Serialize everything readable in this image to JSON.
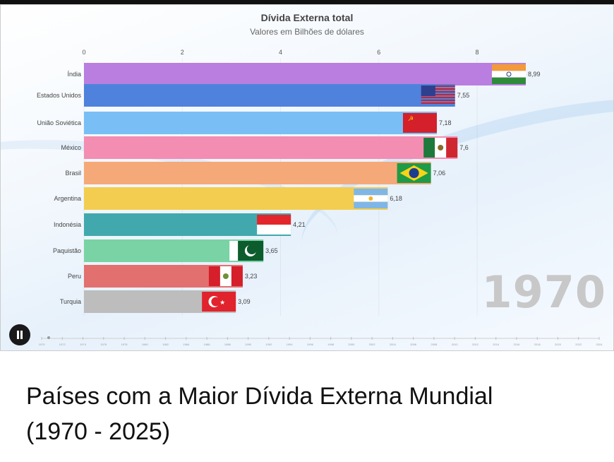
{
  "video": {
    "year": "1970",
    "pause_icon": "pause-icon"
  },
  "caption": {
    "line1": "Países com a Maior Dívida Externa Mundial",
    "line2": "(1970 - 2025)"
  },
  "chart_data": {
    "type": "bar",
    "orientation": "horizontal",
    "title": "Dívida Externa total",
    "subtitle": "Valores em Bilhões de dólares",
    "xlim": [
      0,
      8.99
    ],
    "xticks": [
      0,
      2,
      4,
      6,
      8
    ],
    "categories": [
      "Índia",
      "Estados Unidos",
      "União Soviética",
      "México",
      "Brasil",
      "Argentina",
      "Indonésia",
      "Paquistão",
      "Peru",
      "Turquia"
    ],
    "values": [
      8.99,
      7.55,
      7.18,
      7.6,
      7.06,
      6.18,
      4.21,
      3.65,
      3.23,
      3.09
    ],
    "value_labels": [
      "8,99",
      "7,55",
      "7,18",
      "7,6",
      "7,06",
      "6,18",
      "4,21",
      "3,65",
      "3,23",
      "3,09"
    ],
    "colors": [
      "#b97ee0",
      "#4f82dc",
      "#79bff5",
      "#f38db2",
      "#f6a978",
      "#f3cd4f",
      "#41a9ad",
      "#79d3a5",
      "#e2706e",
      "#bdbdbd"
    ],
    "flags": [
      "india-flag",
      "usa-flag",
      "ussr-flag",
      "mexico-flag",
      "brazil-flag",
      "argentina-flag",
      "indonesia-flag",
      "pakistan-flag",
      "peru-flag",
      "turkey-flag"
    ],
    "timeline_ticks": [
      "1970",
      "1972",
      "1974",
      "1976",
      "1978",
      "1980",
      "1982",
      "1984",
      "1986",
      "1988",
      "1990",
      "1992",
      "1994",
      "1996",
      "1998",
      "2000",
      "2002",
      "2004",
      "2006",
      "2008",
      "2010",
      "2012",
      "2014",
      "2016",
      "2018",
      "2020",
      "2022",
      "2024"
    ]
  }
}
